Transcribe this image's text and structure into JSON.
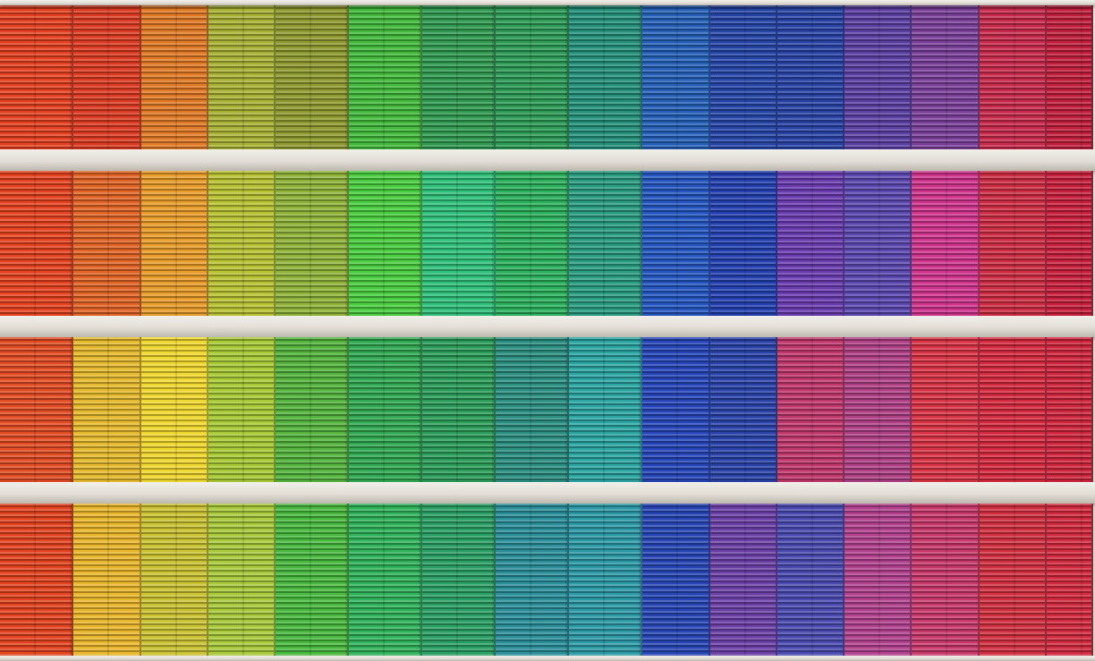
{
  "scene": {
    "subject": "facade",
    "floors": [
      {
        "colors": [
          "#e5401f",
          "#dd3b21",
          "#e27a25",
          "#a7b235",
          "#8f9a2e",
          "#42b93a",
          "#2f9a50",
          "#2b9b55",
          "#24907a",
          "#2460b8",
          "#2545a8",
          "#2843a5",
          "#5a3fa2",
          "#7a3f9a",
          "#c82a4c",
          "#c01e3b"
        ]
      },
      {
        "colors": [
          "#e5421f",
          "#e26425",
          "#e99c2a",
          "#b8c232",
          "#8fb338",
          "#49cd3f",
          "#2fc07a",
          "#2bb05c",
          "#2a9c80",
          "#2456c0",
          "#2340b0",
          "#6a3cb0",
          "#5b48b0",
          "#d0338d",
          "#cd2c43",
          "#c8203c"
        ]
      },
      {
        "colors": [
          "#e34b22",
          "#e6b92c",
          "#f0d72e",
          "#a7c934",
          "#53b33c",
          "#2fa851",
          "#2a9c58",
          "#2a8e80",
          "#2aa5a2",
          "#2545b8",
          "#2842a8",
          "#c0376c",
          "#ae3f85",
          "#d93244",
          "#d4293e",
          "#cf253d"
        ]
      },
      {
        "colors": [
          "#e3431f",
          "#e9b62b",
          "#cbc232",
          "#a9c93a",
          "#48b93e",
          "#2fb25a",
          "#2a9f63",
          "#2a8f9a",
          "#2c9aa6",
          "#2746b5",
          "#6b3fa6",
          "#4a4ab0",
          "#b2418f",
          "#c8386a",
          "#d23040",
          "#d22a3e"
        ]
      }
    ]
  }
}
